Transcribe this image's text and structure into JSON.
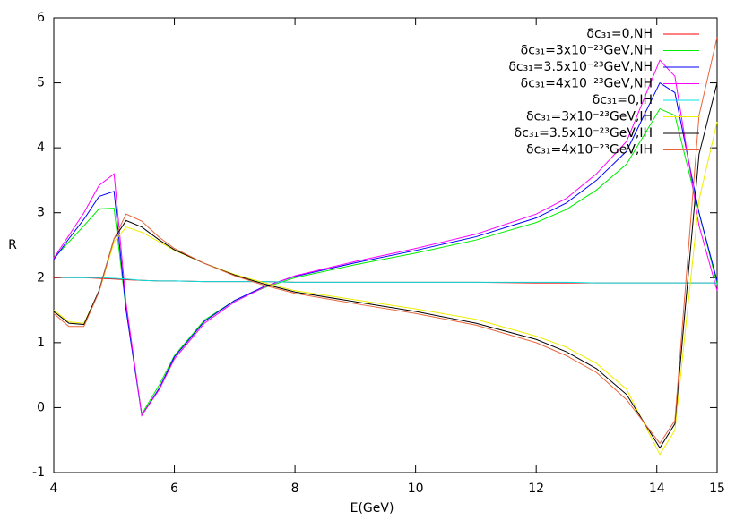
{
  "chart_data": {
    "type": "line",
    "x_label": "E(GeV)",
    "y_label": "R",
    "x": [
      4,
      4.25,
      4.5,
      4.75,
      5.0,
      5.2,
      5.46,
      5.75,
      6,
      6.5,
      7,
      7.5,
      8,
      9,
      10,
      11,
      12,
      12.5,
      13,
      13.5,
      14.05,
      14.3,
      14.7,
      15
    ],
    "xlim": [
      4,
      15
    ],
    "xticks": [
      4,
      6,
      8,
      10,
      12,
      14,
      15
    ],
    "ylim": [
      -1,
      6
    ],
    "yticks": [
      -1,
      0,
      1,
      2,
      3,
      4,
      5,
      6
    ],
    "legend": "top-right",
    "series": [
      {
        "name": "δc₃₁=0,NH",
        "color": "#ff0000",
        "values": [
          2.0,
          2.0,
          2.0,
          1.99,
          1.98,
          1.97,
          1.96,
          1.95,
          1.95,
          1.94,
          1.94,
          1.94,
          1.93,
          1.93,
          1.93,
          1.93,
          1.92,
          1.92,
          1.92,
          1.92,
          1.92,
          1.92,
          1.92,
          1.92
        ]
      },
      {
        "name": "δc₃₁=3x10⁻²³GeV,NH",
        "color": "#00ee00",
        "values": [
          2.3,
          2.55,
          2.8,
          3.06,
          3.07,
          1.5,
          -0.1,
          0.35,
          0.8,
          1.35,
          1.65,
          1.85,
          2.0,
          2.2,
          2.38,
          2.58,
          2.85,
          3.05,
          3.35,
          3.75,
          4.6,
          4.5,
          3.0,
          1.9
        ]
      },
      {
        "name": "δc₃₁=3.5x10⁻²³GeV,NH",
        "color": "#0000ff",
        "values": [
          2.28,
          2.6,
          2.9,
          3.25,
          3.33,
          1.5,
          -0.12,
          0.3,
          0.78,
          1.33,
          1.65,
          1.87,
          2.02,
          2.23,
          2.42,
          2.63,
          2.92,
          3.15,
          3.5,
          3.95,
          5.0,
          4.85,
          3.0,
          1.95
        ]
      },
      {
        "name": "δc₃₁=4x10⁻²³GeV,NH",
        "color": "#ff00ff",
        "values": [
          2.3,
          2.65,
          3.0,
          3.42,
          3.6,
          1.6,
          -0.12,
          0.28,
          0.75,
          1.3,
          1.63,
          1.86,
          2.03,
          2.25,
          2.45,
          2.67,
          2.98,
          3.22,
          3.6,
          4.1,
          5.35,
          5.1,
          2.8,
          1.8
        ]
      },
      {
        "name": "δc₃₁=0,IH",
        "color": "#00e0e0",
        "values": [
          2.01,
          2.0,
          2.0,
          2.0,
          1.99,
          1.98,
          1.96,
          1.95,
          1.95,
          1.94,
          1.94,
          1.94,
          1.93,
          1.93,
          1.93,
          1.93,
          1.93,
          1.93,
          1.92,
          1.92,
          1.92,
          1.92,
          1.92,
          1.92
        ]
      },
      {
        "name": "δc₃₁=3x10⁻²³GeV,IH",
        "color": "#eeee00",
        "values": [
          1.5,
          1.32,
          1.3,
          1.78,
          2.55,
          2.78,
          2.7,
          2.55,
          2.42,
          2.22,
          2.05,
          1.92,
          1.8,
          1.66,
          1.52,
          1.36,
          1.1,
          0.93,
          0.68,
          0.28,
          -0.72,
          -0.35,
          3.2,
          4.4
        ]
      },
      {
        "name": "δc₃₁=3.5x10⁻²³GeV,IH",
        "color": "#000000",
        "values": [
          1.48,
          1.3,
          1.28,
          1.8,
          2.6,
          2.88,
          2.78,
          2.58,
          2.43,
          2.22,
          2.04,
          1.9,
          1.78,
          1.63,
          1.48,
          1.3,
          1.05,
          0.86,
          0.6,
          0.2,
          -0.62,
          -0.25,
          3.9,
          5.0
        ]
      },
      {
        "name": "δc₃₁=4x10⁻²³GeV,IH",
        "color": "#e8643c",
        "values": [
          1.45,
          1.25,
          1.25,
          1.78,
          2.6,
          2.98,
          2.87,
          2.62,
          2.45,
          2.22,
          2.03,
          1.88,
          1.76,
          1.6,
          1.45,
          1.27,
          1.0,
          0.8,
          0.54,
          0.12,
          -0.55,
          -0.2,
          4.5,
          5.7
        ]
      }
    ]
  }
}
